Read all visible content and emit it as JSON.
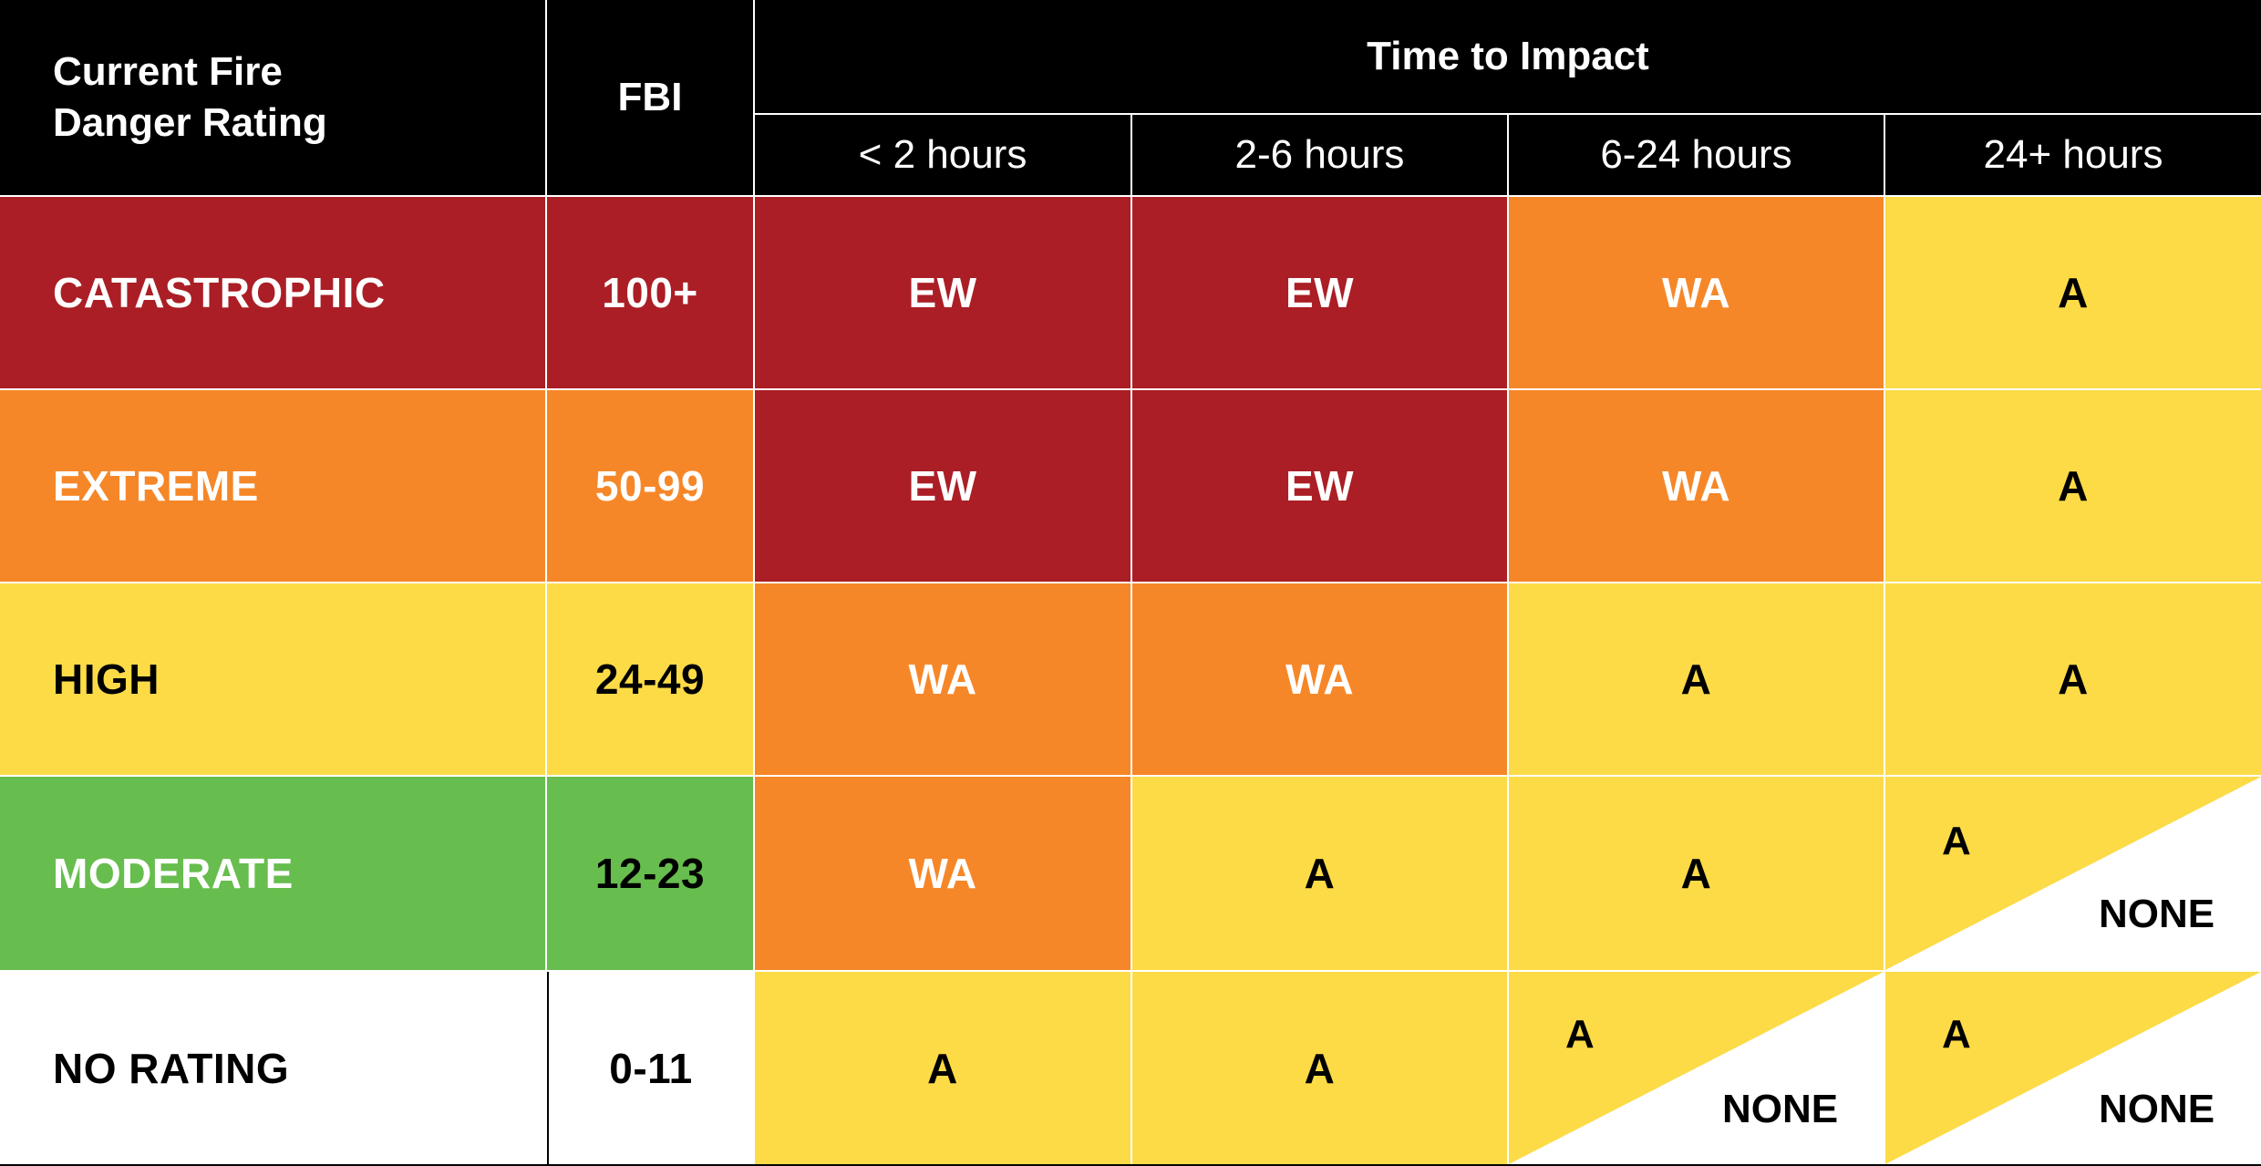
{
  "header": {
    "rating_title_line1": "Current Fire",
    "rating_title_line2": "Danger Rating",
    "fbi": "FBI",
    "time_to_impact": "Time to Impact",
    "columns": [
      "< 2 hours",
      "2-6 hours",
      "6-24 hours",
      "24+  hours"
    ]
  },
  "rows": [
    {
      "rating": "CATASTROPHIC",
      "fbi": "100+",
      "cells": [
        "EW",
        "EW",
        "WA",
        "A"
      ]
    },
    {
      "rating": "EXTREME",
      "fbi": "50-99",
      "cells": [
        "EW",
        "EW",
        "WA",
        "A"
      ]
    },
    {
      "rating": "HIGH",
      "fbi": "24-49",
      "cells": [
        "WA",
        "WA",
        "A",
        "A"
      ]
    },
    {
      "rating": "MODERATE",
      "fbi": "12-23",
      "cells": [
        "WA",
        "A",
        "A",
        "A"
      ],
      "split_last": "NONE"
    },
    {
      "rating": "NO RATING",
      "fbi": "0-11",
      "cells": [
        "A",
        "A",
        "A",
        "A"
      ],
      "split_c2": "NONE",
      "split_c3": "NONE"
    }
  ],
  "colors": {
    "catastrophic": "#ab1e25",
    "extreme": "#f68728",
    "high": "#fcdb47",
    "moderate": "#67bd4d",
    "no_rating": "#ffffff",
    "header": "#000000"
  }
}
